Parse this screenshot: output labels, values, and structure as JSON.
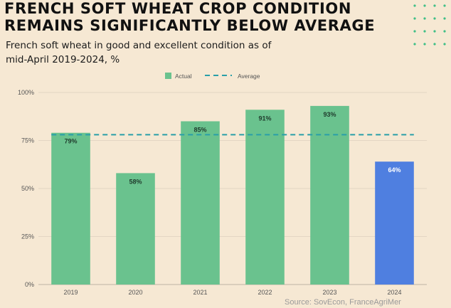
{
  "title_lines": [
    "FRENCH SOFT WHEAT CROP CONDITION",
    "REMAINS SIGNIFICANTLY BELOW AVERAGE"
  ],
  "subtitle_lines": [
    "French soft wheat in good and excellent condition as of",
    "mid-April 2019-2024, %"
  ],
  "source": "Source: SovEcon, FranceAgriMer",
  "colors": {
    "background": "#f6e8d3",
    "actual": "#6ac28e",
    "highlight": "#4f7fe0",
    "average": "#2a9fa8",
    "dots": "#3fbf87"
  },
  "chart_data": {
    "type": "bar",
    "categories": [
      "2019",
      "2020",
      "2021",
      "2022",
      "2023",
      "2024"
    ],
    "series": [
      {
        "name": "Actual",
        "values": [
          79,
          58,
          85,
          91,
          93,
          64
        ],
        "labels": [
          "79%",
          "58%",
          "85%",
          "91%",
          "93%",
          "64%"
        ],
        "highlight_index": 5
      }
    ],
    "reference_line": {
      "name": "Average",
      "value": 78,
      "style": "dashed"
    },
    "legend": [
      "Actual",
      "Average"
    ],
    "legend_position": "top",
    "ylim": [
      0,
      100
    ],
    "yticks": [
      0,
      25,
      50,
      75,
      100
    ],
    "ytick_labels": [
      "0%",
      "25%",
      "50%",
      "75%",
      "100%"
    ],
    "grid": true
  }
}
